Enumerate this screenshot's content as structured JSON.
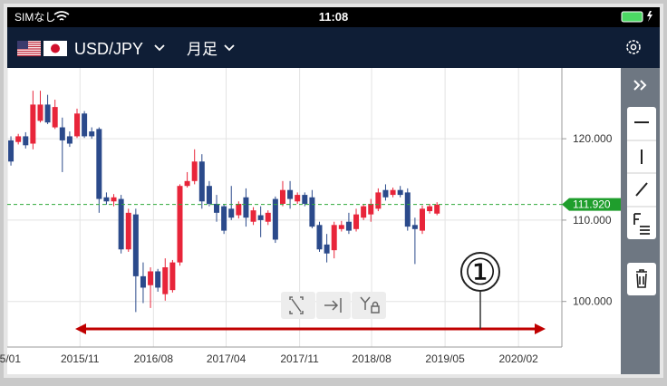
{
  "status_bar": {
    "carrier": "SIMなし",
    "time": "11:08"
  },
  "header": {
    "pair": "USD/JPY",
    "period": "月足"
  },
  "chart_data": {
    "type": "candlestick",
    "up_color": "#e8253a",
    "down_color": "#2b4a8b",
    "grid": true,
    "open": [
      119.8,
      119.6,
      120.3,
      119.4,
      122.2,
      124.2,
      121.4,
      121.4,
      120.3,
      120.3,
      123.1,
      120.9,
      121.2,
      112.8,
      112.3,
      112.6,
      106.4,
      110.7,
      103.1,
      102.0,
      103.7,
      100.9,
      101.4,
      104.8,
      114.2,
      114.8,
      117.2,
      114.2,
      112.0,
      111.7,
      111.4,
      110.6,
      112.8,
      109.8,
      110.6,
      109.8,
      112.6,
      112.0,
      113.7,
      112.3,
      113.1,
      112.8,
      109.4,
      107.0,
      106.3,
      108.9,
      109.8,
      108.9,
      110.3,
      110.7,
      111.4,
      113.7,
      113.1,
      113.7,
      113.4,
      109.4,
      108.7,
      111.1,
      110.8
    ],
    "high": [
      120.3,
      120.6,
      120.8,
      125.9,
      125.9,
      125.4,
      124.8,
      122.6,
      120.9,
      123.7,
      123.4,
      121.4,
      121.4,
      113.4,
      113.2,
      113.1,
      111.4,
      111.4,
      104.8,
      104.2,
      104.0,
      105.3,
      105.1,
      114.4,
      115.9,
      118.7,
      118.1,
      114.8,
      113.1,
      112.0,
      114.2,
      112.3,
      113.9,
      111.6,
      111.7,
      111.2,
      112.9,
      114.8,
      114.8,
      113.4,
      113.4,
      113.7,
      109.8,
      108.3,
      109.8,
      109.9,
      110.9,
      111.4,
      112.0,
      112.6,
      113.9,
      114.4,
      114.0,
      114.2,
      113.9,
      110.3,
      111.8,
      112.0,
      112.2
    ],
    "low": [
      116.7,
      119.3,
      118.8,
      118.7,
      122.0,
      121.8,
      121.2,
      115.9,
      119.0,
      120.1,
      120.1,
      120.0,
      110.9,
      111.9,
      111.7,
      105.9,
      106.1,
      98.7,
      99.8,
      99.2,
      101.2,
      100.1,
      101.1,
      104.4,
      114.0,
      114.4,
      111.4,
      111.7,
      109.8,
      108.3,
      110.0,
      110.2,
      109.2,
      109.4,
      107.9,
      109.4,
      107.2,
      111.7,
      111.4,
      112.0,
      111.7,
      109.0,
      106.1,
      104.8,
      105.3,
      108.6,
      108.3,
      108.6,
      110.0,
      109.8,
      111.1,
      112.4,
      112.8,
      112.8,
      108.7,
      104.6,
      108.3,
      110.8,
      110.6
    ],
    "close": [
      117.2,
      120.3,
      119.2,
      124.2,
      124.2,
      122.0,
      123.9,
      119.8,
      119.4,
      123.1,
      120.3,
      120.3,
      112.6,
      112.3,
      112.8,
      106.4,
      110.9,
      103.1,
      101.7,
      103.7,
      101.7,
      104.2,
      104.8,
      114.2,
      114.8,
      117.2,
      112.3,
      112.0,
      110.9,
      108.7,
      110.3,
      112.0,
      110.3,
      111.2,
      110.0,
      110.9,
      107.6,
      113.7,
      112.6,
      113.1,
      112.0,
      109.2,
      106.4,
      105.9,
      109.4,
      109.4,
      108.7,
      110.7,
      111.7,
      112.0,
      113.4,
      112.8,
      113.7,
      113.1,
      109.2,
      108.9,
      111.4,
      111.7,
      111.9
    ],
    "xlim": [
      -0.5,
      75
    ],
    "xticks": [
      {
        "value": -0.5,
        "label": "15/01"
      },
      {
        "value": 9.4,
        "label": "2015/11"
      },
      {
        "value": 19.4,
        "label": "2016/08"
      },
      {
        "value": 29.3,
        "label": "2017/04"
      },
      {
        "value": 39.3,
        "label": "2017/11"
      },
      {
        "value": 49.1,
        "label": "2018/08"
      },
      {
        "value": 59.1,
        "label": "2019/05"
      },
      {
        "value": 69.1,
        "label": "2020/02"
      }
    ],
    "ylim": [
      94.4,
      128.7
    ],
    "yticks": [
      {
        "value": 100,
        "label": "100.000"
      },
      {
        "value": 110,
        "label": "110.000"
      },
      {
        "value": 120,
        "label": "120.000"
      }
    ],
    "current_price": {
      "value": 111.92,
      "label": "111.920"
    },
    "annotation": "①"
  }
}
